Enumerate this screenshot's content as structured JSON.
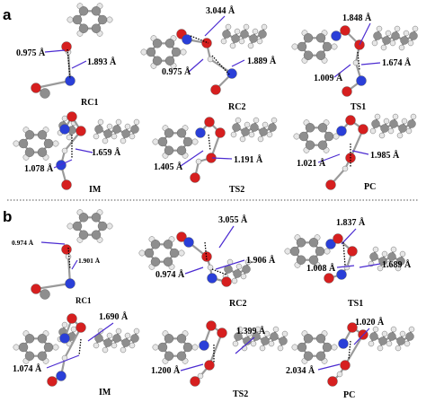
{
  "figure": {
    "divider": "dotted",
    "colors": {
      "carbon": "#8e8e8e",
      "hydrogen": "#e6e6e6",
      "oxygen": "#d61f1f",
      "nitrogen": "#2a3fd8",
      "bond": "#9a9a9a",
      "leader_line": "#4b2bd1",
      "hbond": "#000000"
    },
    "panels": [
      {
        "letter": "a",
        "structures": [
          {
            "name": "RC1",
            "distances": [
              "0.975 Å",
              "1.893 Å"
            ]
          },
          {
            "name": "RC2",
            "distances": [
              "3.044 Å",
              "1.889 Å",
              "0.975 Å"
            ]
          },
          {
            "name": "TS1",
            "distances": [
              "1.848 Å",
              "1.674 Å",
              "1.009 Å"
            ]
          },
          {
            "name": "IM",
            "distances": [
              "1.659 Å",
              "1.078 Å"
            ]
          },
          {
            "name": "TS2",
            "distances": [
              "1.405 Å",
              "1.191 Å"
            ]
          },
          {
            "name": "PC",
            "distances": [
              "1.021 Å",
              "1.985 Å"
            ]
          }
        ]
      },
      {
        "letter": "b",
        "structures": [
          {
            "name": "RC1",
            "distances": [
              "0.974 Å",
              "1.901 Å"
            ]
          },
          {
            "name": "RC2",
            "distances": [
              "3.055 Å",
              "1.906 Å",
              "0.974 Å"
            ]
          },
          {
            "name": "TS1",
            "distances": [
              "1.837 Å",
              "1.008 Å",
              "1.689 Å"
            ]
          },
          {
            "name": "IM",
            "distances": [
              "1.690 Å",
              "1.074 Å"
            ]
          },
          {
            "name": "TS2",
            "distances": [
              "1.399 Å",
              "1.200 Å"
            ]
          },
          {
            "name": "PC",
            "distances": [
              "1.020 Å",
              "2.034 Å"
            ]
          }
        ]
      }
    ]
  }
}
